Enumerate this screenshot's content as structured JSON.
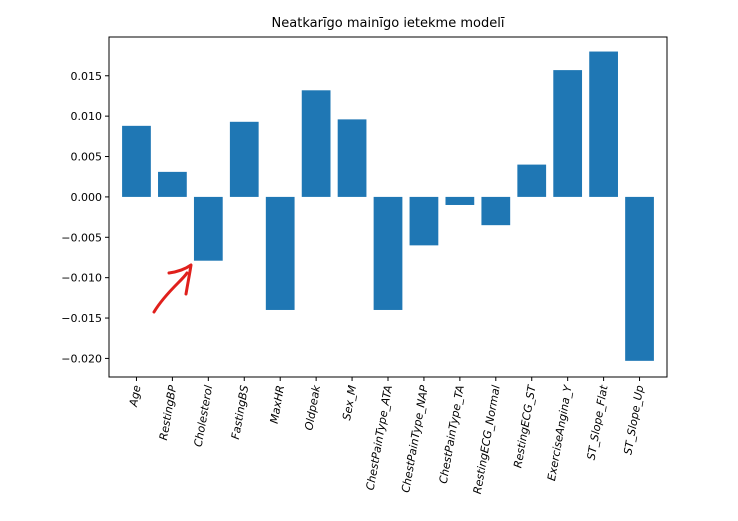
{
  "chart_data": {
    "type": "bar",
    "title": "Neatkarīgo mainīgo ietekme modelī",
    "xlabel": "",
    "ylabel": "",
    "categories": [
      "Age",
      "RestingBP",
      "Cholesterol",
      "FastingBS",
      "MaxHR",
      "Oldpeak",
      "Sex_M",
      "ChestPainType_ATA",
      "ChestPainType_NAP",
      "ChestPainType_TA",
      "RestingECG_Normal",
      "RestingECG_ST",
      "ExerciseAngina_Y",
      "ST_Slope_Flat",
      "ST_Slope_Up"
    ],
    "values": [
      0.0088,
      0.0031,
      -0.0079,
      0.0093,
      -0.014,
      0.0132,
      0.0096,
      -0.014,
      -0.006,
      -0.001,
      -0.0035,
      0.004,
      0.0157,
      0.018,
      -0.0203
    ],
    "ylim": [
      -0.0223,
      0.0198
    ],
    "yticks": [
      0.015,
      0.01,
      0.005,
      0.0,
      -0.005,
      -0.01,
      -0.015,
      -0.02
    ],
    "ytick_labels": [
      "0.015",
      "0.010",
      "0.005",
      "0.000",
      "−0.005",
      "−0.010",
      "−0.015",
      "−0.020"
    ],
    "bar_color": "#1f77b4",
    "grid": false,
    "legend": "none"
  },
  "annotation": {
    "type": "hand-drawn arrow",
    "color": "#e0201c"
  }
}
